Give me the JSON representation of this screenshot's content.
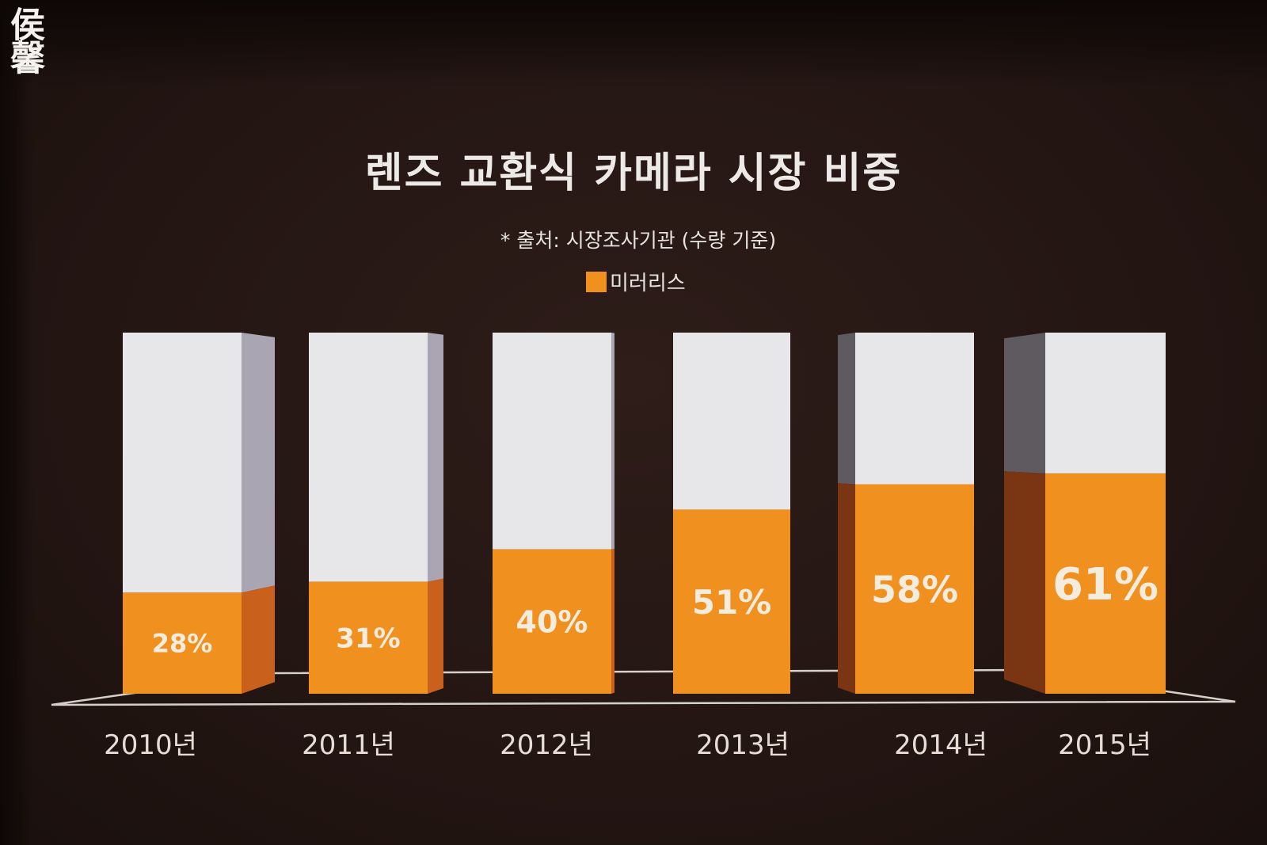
{
  "watermark": "侯馨",
  "colors": {
    "mirrorless": "#f0901e",
    "remainder": "#e7e6e9"
  },
  "chart_data": {
    "type": "bar",
    "title": "렌즈 교환식 카메라 시장 비중",
    "subtitle": "* 출처: 시장조사기관 (수량 기준)",
    "legend": [
      "미러리스"
    ],
    "legend_placement": "top-center",
    "categories": [
      "2010년",
      "2011년",
      "2012년",
      "2013년",
      "2014년",
      "2015년"
    ],
    "series": [
      {
        "name": "미러리스",
        "values": [
          28,
          31,
          40,
          51,
          58,
          61
        ]
      }
    ],
    "value_suffix": "%",
    "ylim": [
      0,
      100
    ],
    "stacked_to_100": true,
    "grid": false
  }
}
